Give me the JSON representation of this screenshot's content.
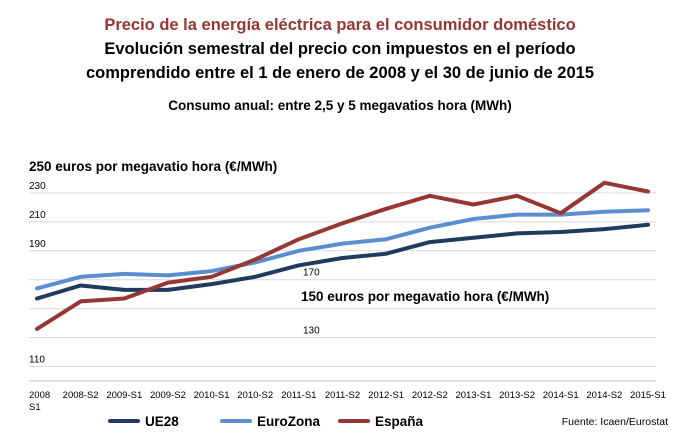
{
  "titles": {
    "main": "Precio de la energía eléctrica para el consumidor doméstico",
    "line2": "Evolución semestral del precio con impuestos en el período",
    "line3": "comprendido entre el 1 de enero de 2008 y el 30 de junio de 2015",
    "subtitle": "Consumo anual: entre 2,5 y 5 megavatios hora (MWh)"
  },
  "annotations": {
    "top": "250 euros por megavatio hora (€/MWh)",
    "middle": "150 euros por megavatio hora (€/MWh)"
  },
  "source": "Fuente: Icaen/Eurostat",
  "colors": {
    "UE28": "#1f3b5e",
    "EuroZona": "#5b8ed0",
    "España": "#953735",
    "grid": "#d9d9d9"
  },
  "chart_data": {
    "type": "line",
    "categories": [
      "2008 S1",
      "2008-S2",
      "2009-S1",
      "2009-S2",
      "2010-S1",
      "2010-S2",
      "2011-S1",
      "2011-S2",
      "2012-S1",
      "2012-S2",
      "2013-S1",
      "2013-S2",
      "2014-S1",
      "2014-S2",
      "2015-S1"
    ],
    "y_tick_labels": [
      "110",
      "130",
      "170",
      "190",
      "210",
      "230"
    ],
    "ylim": [
      100,
      250
    ],
    "grid": true,
    "legend_position": "bottom",
    "series": [
      {
        "name": "UE28",
        "values": [
          157,
          166,
          163,
          163,
          167,
          172,
          180,
          185,
          188,
          196,
          199,
          202,
          203,
          205,
          208
        ]
      },
      {
        "name": "EuroZona",
        "values": [
          164,
          172,
          174,
          173,
          176,
          182,
          190,
          195,
          198,
          206,
          212,
          215,
          215,
          217,
          218
        ]
      },
      {
        "name": "España",
        "values": [
          136,
          155,
          157,
          168,
          172,
          184,
          198,
          209,
          219,
          228,
          222,
          228,
          216,
          237,
          231
        ]
      }
    ]
  }
}
